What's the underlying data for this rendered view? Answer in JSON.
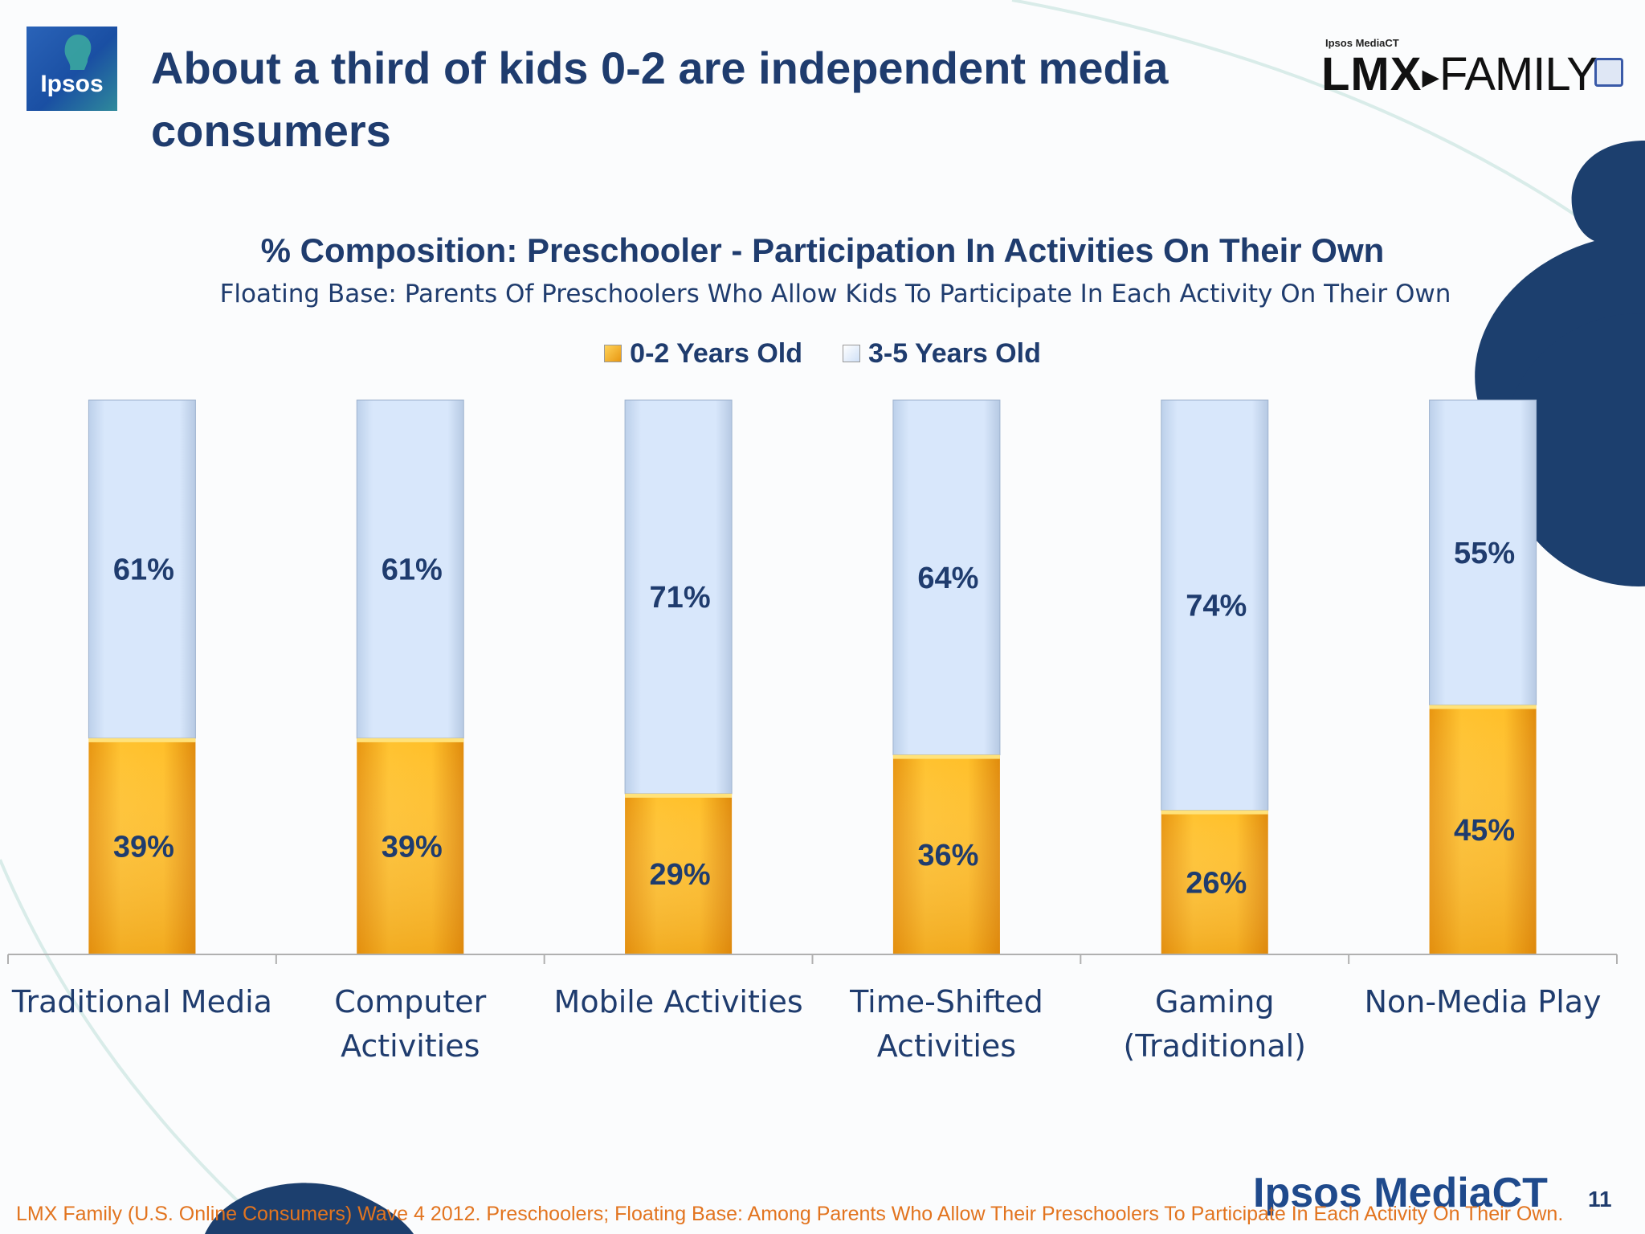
{
  "slide": {
    "title_line1": "About a third of kids 0-2 are independent media",
    "title_line2": "consumers",
    "page_number": "11",
    "footnote": "LMX Family (U.S. Online Consumers) Wave 4 2012.  Preschoolers; Floating Base: Among Parents Who Allow Their Preschoolers To Participate In Each Activity On Their Own."
  },
  "logos": {
    "ipsos": "Ipsos",
    "lmx_small": "Ipsos MediaCT",
    "lmx_bold": "LMX",
    "lmx_family": "FAMILY",
    "brand_footer": "Ipsos MediaCT"
  },
  "colors": {
    "title": "#1f3c6e",
    "series_0_2": "#f5b020",
    "series_3_5": "#d4e4fb",
    "footnote": "#e2741f",
    "accent_dark_blue": "#1c3f6e"
  },
  "chart_data": {
    "type": "bar",
    "stacked": true,
    "title": "% Composition: Preschooler - Participation In Activities On Their Own",
    "subtitle": "Floating Base: Parents Of Preschoolers Who Allow Kids To Participate In Each Activity On Their Own",
    "categories": [
      [
        "Traditional Media"
      ],
      [
        "Computer",
        "Activities"
      ],
      [
        "Mobile Activities"
      ],
      [
        "Time-Shifted",
        "Activities"
      ],
      [
        "Gaming",
        "(Traditional)"
      ],
      [
        "Non-Media Play"
      ]
    ],
    "series": [
      {
        "name": "0-2 Years Old",
        "values": [
          39,
          39,
          29,
          36,
          26,
          45
        ],
        "labels": [
          "39%",
          "39%",
          "29%",
          "36%",
          "26%",
          "45%"
        ]
      },
      {
        "name": "3-5 Years Old",
        "values": [
          61,
          61,
          71,
          64,
          74,
          55
        ],
        "labels": [
          "61%",
          "61%",
          "71%",
          "64%",
          "74%",
          "55%"
        ]
      }
    ],
    "ylim": [
      0,
      100
    ],
    "legend": "top",
    "grid": false
  }
}
